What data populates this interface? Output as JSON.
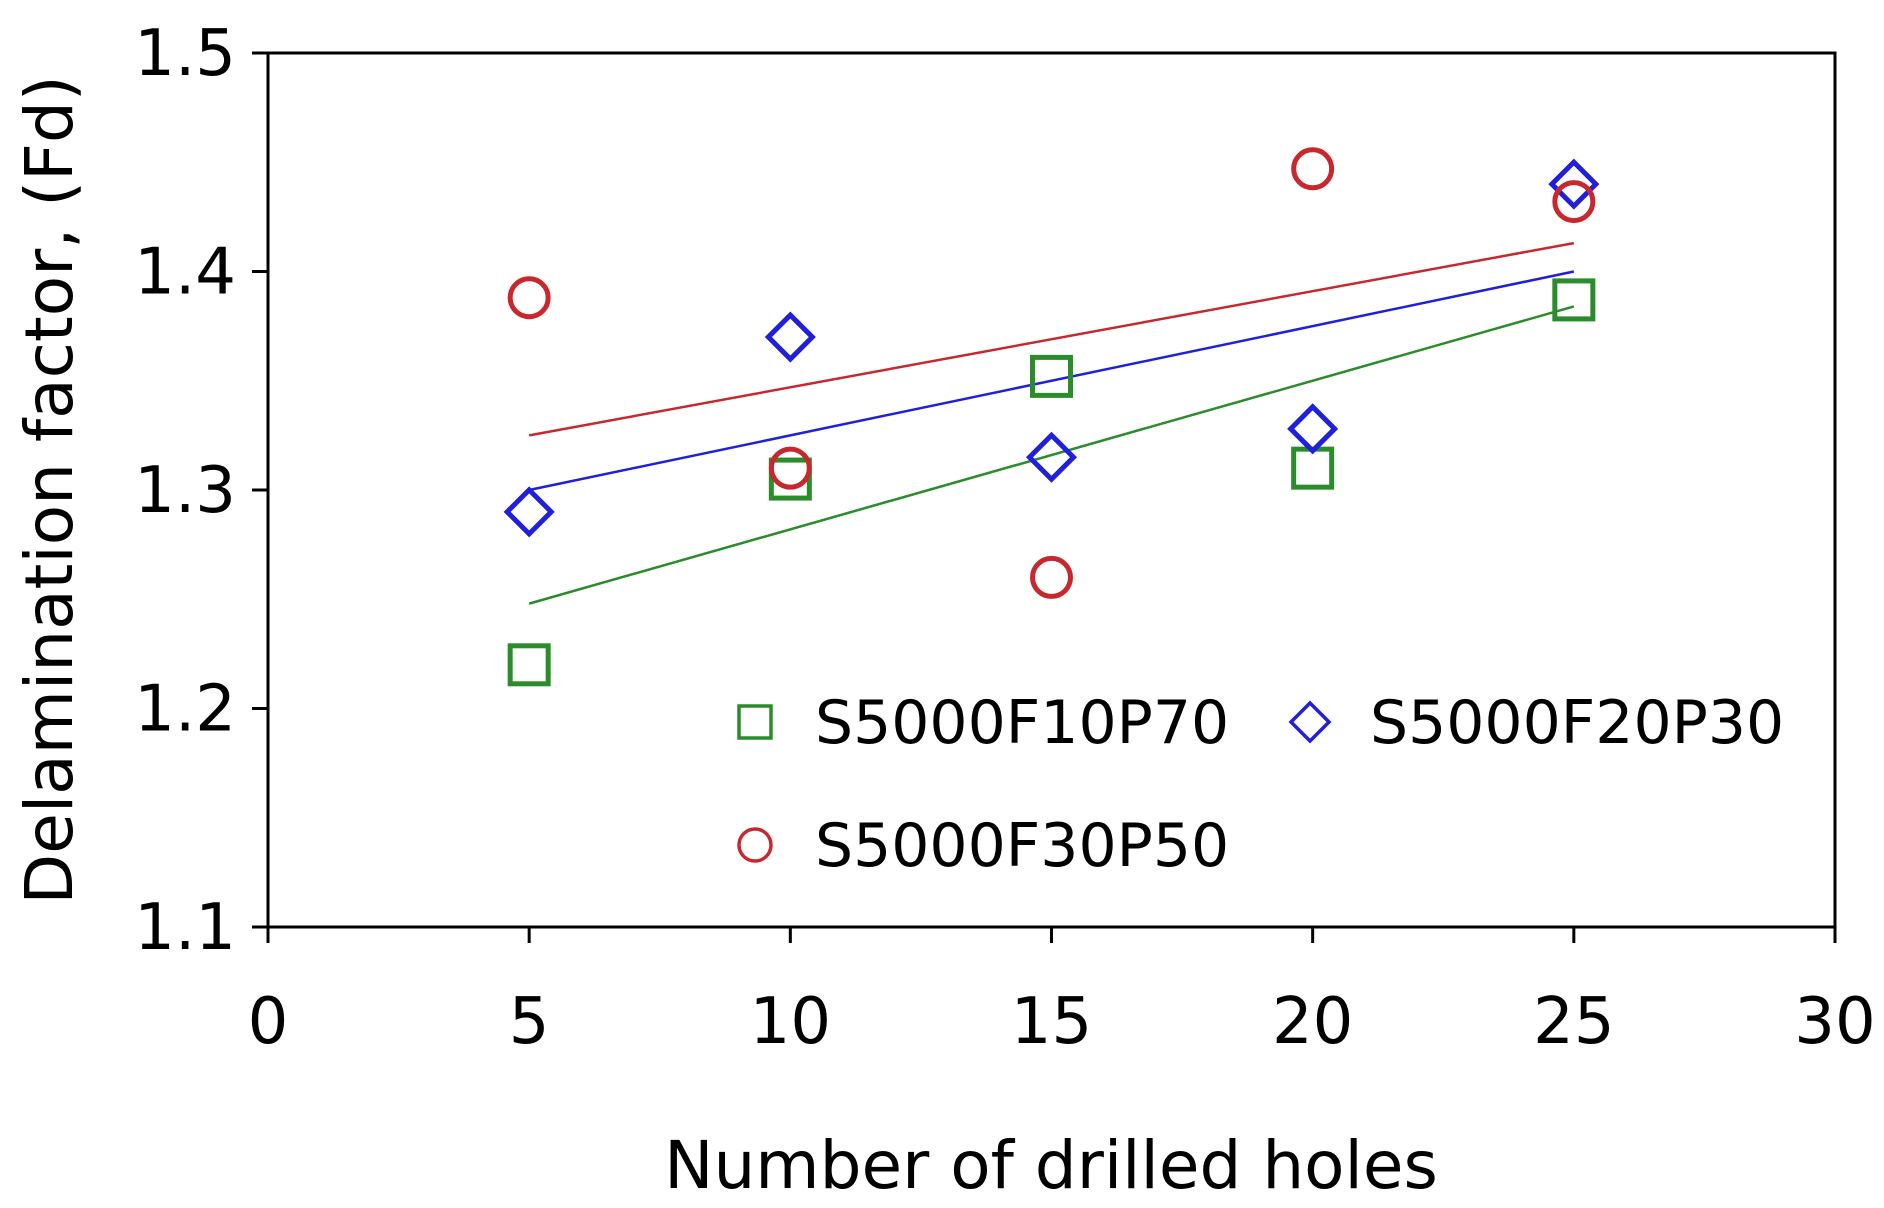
{
  "chart_data": {
    "type": "scatter",
    "title": "",
    "xlabel": "Number of drilled holes",
    "ylabel": "Delamination factor, (Fd)",
    "xlim": [
      0,
      30
    ],
    "ylim": [
      1.1,
      1.5
    ],
    "xticks": [
      0,
      5,
      10,
      15,
      20,
      25,
      30
    ],
    "yticks": [
      1.1,
      1.2,
      1.3,
      1.4,
      1.5
    ],
    "xtick_labels": [
      "0",
      "5",
      "10",
      "15",
      "20",
      "25",
      "30"
    ],
    "ytick_labels": [
      "1.1",
      "1.2",
      "1.3",
      "1.4",
      "1.5"
    ],
    "grid": false,
    "legend_position": "bottom-center inside plot",
    "series": [
      {
        "name": "S5000F10P70",
        "marker": "square",
        "color": "#2a8c2a",
        "x": [
          5,
          10,
          15,
          20,
          25
        ],
        "y": [
          1.22,
          1.305,
          1.352,
          1.31,
          1.387
        ],
        "trendline": {
          "x": [
            5,
            25
          ],
          "y": [
            1.248,
            1.384
          ]
        }
      },
      {
        "name": "S5000F20P30",
        "marker": "diamond",
        "color": "#1f1fdc",
        "x": [
          5,
          10,
          15,
          20,
          25
        ],
        "y": [
          1.29,
          1.37,
          1.315,
          1.328,
          1.44
        ],
        "trendline": {
          "x": [
            5,
            25
          ],
          "y": [
            1.3,
            1.4
          ]
        }
      },
      {
        "name": "S5000F30P50",
        "marker": "circle",
        "color": "#c8282d",
        "x": [
          5,
          10,
          15,
          20,
          25
        ],
        "y": [
          1.388,
          1.31,
          1.26,
          1.447,
          1.432
        ],
        "trendline": {
          "x": [
            5,
            25
          ],
          "y": [
            1.325,
            1.413
          ]
        }
      }
    ]
  }
}
